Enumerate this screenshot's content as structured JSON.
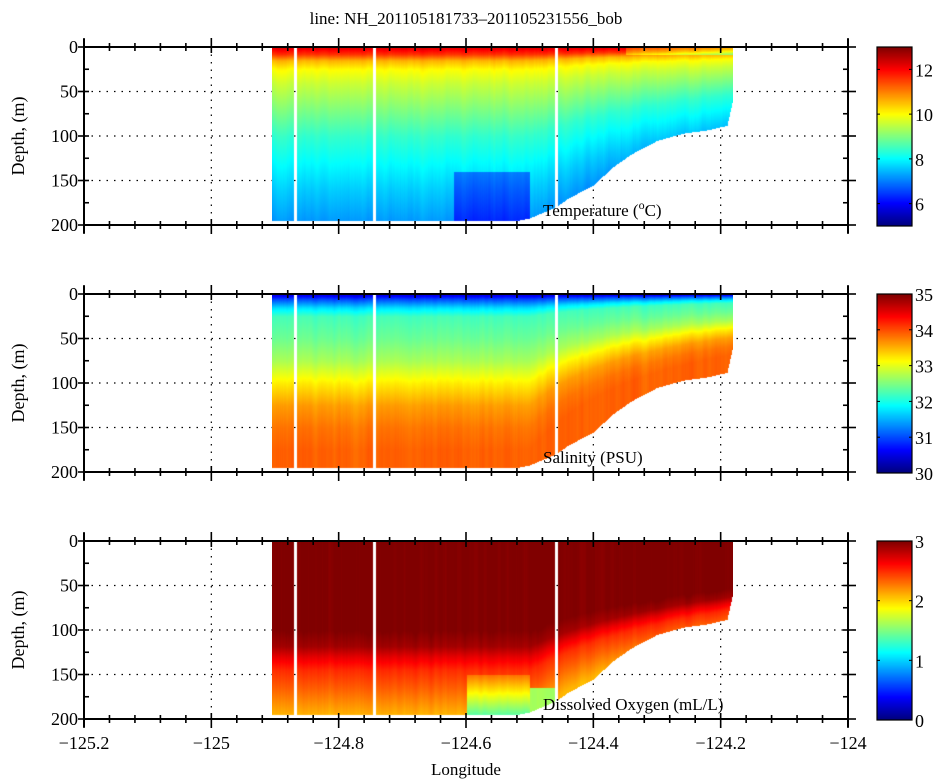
{
  "chart_data": {
    "type": "heatmap",
    "title": "line: NH_201105181733–201105231556_bob",
    "xlabel": "Longitude",
    "ylabel": "Depth, (m)",
    "xlim": [
      -125.2,
      -124.0
    ],
    "ylim": [
      200,
      0
    ],
    "x_ticks": [
      -125.2,
      -125,
      -124.8,
      -124.6,
      -124.4,
      -124.2,
      -124
    ],
    "x_tick_labels": [
      "−125.2",
      "−125",
      "−124.8",
      "−124.6",
      "−124.4",
      "−124.2",
      "−124"
    ],
    "y_ticks": [
      0,
      50,
      100,
      150,
      200
    ],
    "y_tick_labels": [
      "0",
      "50",
      "100",
      "150",
      "200"
    ],
    "grid": "dotted",
    "colormap": "jet",
    "data_extent_lon": [
      -124.905,
      -124.18
    ],
    "max_profile_depth": 195,
    "gap_longitudes": [
      -124.868,
      -124.745,
      -124.458
    ],
    "bottom_profile": {
      "lon": [
        -124.905,
        -124.52,
        -124.5,
        -124.46,
        -124.44,
        -124.4,
        -124.37,
        -124.34,
        -124.3,
        -124.26,
        -124.22,
        -124.19,
        -124.18
      ],
      "depth": [
        195,
        195,
        192,
        180,
        170,
        155,
        135,
        120,
        105,
        97,
        93,
        88,
        55
      ]
    },
    "panels": [
      {
        "label": "Temperature (°C)",
        "label_main": "Temperature (",
        "label_sup": "o",
        "label_tail": "C)",
        "variable": "temperature",
        "clim": [
          5,
          13
        ],
        "colorbar_ticks": [
          6,
          8,
          10,
          12
        ],
        "colorbar_tick_labels": [
          "6",
          "8",
          "10",
          "12"
        ],
        "profile": {
          "depth": [
            0,
            8,
            15,
            25,
            40,
            60,
            80,
            100,
            130,
            160,
            195
          ],
          "value": [
            12.3,
            11.6,
            10.6,
            10.0,
            9.6,
            9.2,
            8.8,
            8.4,
            8.0,
            7.6,
            7.2
          ]
        }
      },
      {
        "label": "Salinity (PSU)",
        "variable": "salinity",
        "clim": [
          30,
          35
        ],
        "colorbar_ticks": [
          30,
          31,
          32,
          33,
          34,
          35
        ],
        "colorbar_tick_labels": [
          "30",
          "31",
          "32",
          "33",
          "34",
          "35"
        ],
        "profile": {
          "depth": [
            0,
            6,
            15,
            25,
            50,
            75,
            100,
            125,
            150,
            175,
            195
          ],
          "value": [
            30.4,
            31.0,
            31.7,
            32.2,
            32.4,
            32.7,
            33.2,
            33.6,
            33.8,
            33.9,
            33.9
          ]
        }
      },
      {
        "label": "Dissolved Oxygen (mL/L)",
        "variable": "dissolved_oxygen",
        "clim": [
          0,
          3
        ],
        "colorbar_ticks": [
          0,
          1,
          2,
          3
        ],
        "colorbar_tick_labels": [
          "0",
          "1",
          "2",
          "3"
        ],
        "profile": {
          "depth": [
            0,
            100,
            118,
            130,
            145,
            165,
            195
          ],
          "value": [
            3.0,
            3.0,
            2.9,
            2.7,
            2.5,
            2.35,
            2.1
          ]
        }
      }
    ]
  }
}
